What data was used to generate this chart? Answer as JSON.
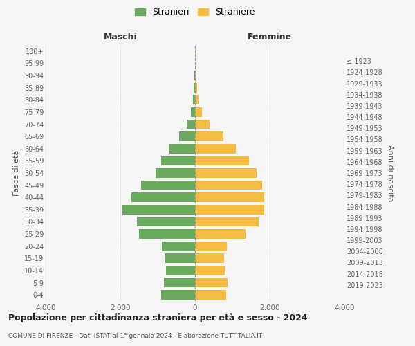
{
  "age_groups": [
    "0-4",
    "5-9",
    "10-14",
    "15-19",
    "20-24",
    "25-29",
    "30-34",
    "35-39",
    "40-44",
    "45-49",
    "50-54",
    "55-59",
    "60-64",
    "65-69",
    "70-74",
    "75-79",
    "80-84",
    "85-89",
    "90-94",
    "95-99",
    "100+"
  ],
  "birth_years": [
    "2019-2023",
    "2014-2018",
    "2009-2013",
    "2004-2008",
    "1999-2003",
    "1994-1998",
    "1989-1993",
    "1984-1988",
    "1979-1983",
    "1974-1978",
    "1969-1973",
    "1964-1968",
    "1959-1963",
    "1954-1958",
    "1949-1953",
    "1944-1948",
    "1939-1943",
    "1934-1938",
    "1929-1933",
    "1924-1928",
    "≤ 1923"
  ],
  "maschi": [
    900,
    840,
    780,
    800,
    880,
    1500,
    1550,
    1950,
    1700,
    1450,
    1050,
    900,
    680,
    430,
    230,
    120,
    60,
    30,
    10,
    5,
    5
  ],
  "femmine": [
    840,
    870,
    800,
    780,
    850,
    1350,
    1700,
    1850,
    1850,
    1800,
    1650,
    1450,
    1100,
    750,
    380,
    180,
    90,
    50,
    15,
    8,
    10
  ],
  "maschi_color": "#6aaa5e",
  "femmine_color": "#f5bc41",
  "title": "Popolazione per cittadinanza straniera per età e sesso - 2024",
  "subtitle": "COMUNE DI FIRENZE - Dati ISTAT al 1° gennaio 2024 - Elaborazione TUTTITALIA.IT",
  "xlabel_left": "Maschi",
  "xlabel_right": "Femmine",
  "ylabel_left": "Fasce di età",
  "ylabel_right": "Anni di nascita",
  "legend_maschi": "Stranieri",
  "legend_femmine": "Straniere",
  "xlim": 4000,
  "background_color": "#f5f5f5",
  "grid_color": "#dddddd"
}
